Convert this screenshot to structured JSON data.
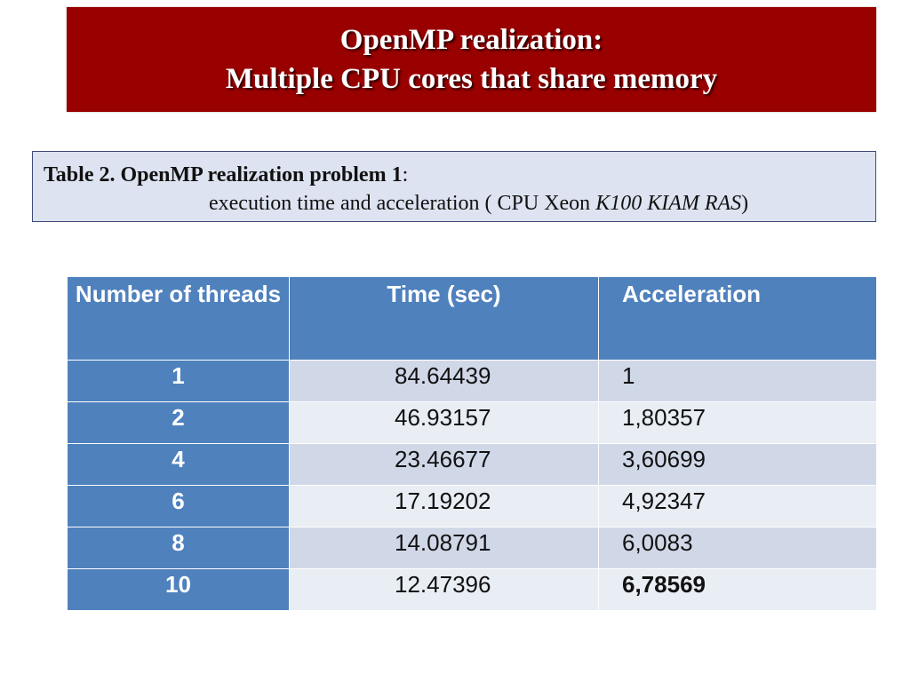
{
  "title": {
    "line1": "OpenMP realization:",
    "line2": "Multiple CPU cores that share memory"
  },
  "caption": {
    "label_bold": "Table 2. OpenMP realization  problem 1",
    "label_suffix": ":",
    "line2_prefix": "execution time and acceleration ( CPU Xeon ",
    "line2_italic": "K100 KIAM RAS",
    "line2_suffix": ")"
  },
  "table": {
    "headers": {
      "threads": "Number of threads",
      "time": "Time (sec)",
      "acceleration": "Acceleration"
    },
    "rows": [
      {
        "threads": "1",
        "time": "84.64439",
        "acceleration": "1"
      },
      {
        "threads": "2",
        "time": "46.93157",
        "acceleration": "1,80357"
      },
      {
        "threads": "4",
        "time": "23.46677",
        "acceleration": "3,60699"
      },
      {
        "threads": "6",
        "time": "17.19202",
        "acceleration": "4,92347"
      },
      {
        "threads": "8",
        "time": "14.08791",
        "acceleration": "6,0083"
      },
      {
        "threads": "10",
        "time": "12.47396",
        "acceleration": "6,78569"
      }
    ]
  },
  "colors": {
    "banner": "#990000",
    "table_header": "#4f81bd",
    "row_dark": "#d0d8e8",
    "row_light": "#e9edf4",
    "caption_bg": "#dde3f0"
  }
}
